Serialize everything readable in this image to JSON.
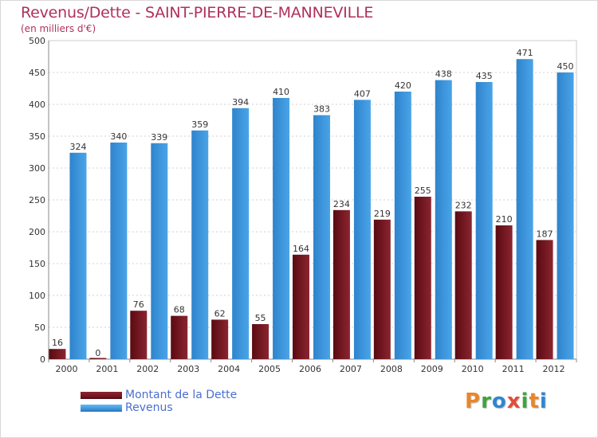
{
  "chart_data": {
    "type": "bar",
    "title": "Revenus/Dette - SAINT-PIERRE-DE-MANNEVILLE",
    "subtitle": "(en milliers d'€)",
    "categories": [
      "2000",
      "2001",
      "2002",
      "2003",
      "2004",
      "2005",
      "2006",
      "2007",
      "2008",
      "2009",
      "2010",
      "2011",
      "2012"
    ],
    "series": [
      {
        "name": "Montant de la Dette",
        "color": "#7a1520",
        "values": [
          16,
          0,
          76,
          68,
          62,
          55,
          164,
          234,
          219,
          255,
          232,
          210,
          187
        ]
      },
      {
        "name": "Revenus",
        "color": "#3d95dc",
        "values": [
          324,
          340,
          339,
          359,
          394,
          410,
          383,
          407,
          420,
          438,
          435,
          471,
          450
        ]
      }
    ],
    "ylim": [
      0,
      500
    ],
    "yticks": [
      0,
      50,
      100,
      150,
      200,
      250,
      300,
      350,
      400,
      450,
      500
    ],
    "grid": true,
    "legend_position": "bottom-left"
  },
  "logo": {
    "letters": [
      {
        "char": "P",
        "color": "#e8862a"
      },
      {
        "char": "r",
        "color": "#3fa33f"
      },
      {
        "char": "o",
        "color": "#2f86d0"
      },
      {
        "char": "x",
        "color": "#e24b3a"
      },
      {
        "char": "i",
        "color": "#3fa33f"
      },
      {
        "char": "t",
        "color": "#e8862a"
      },
      {
        "char": "i",
        "color": "#2f86d0"
      }
    ]
  }
}
